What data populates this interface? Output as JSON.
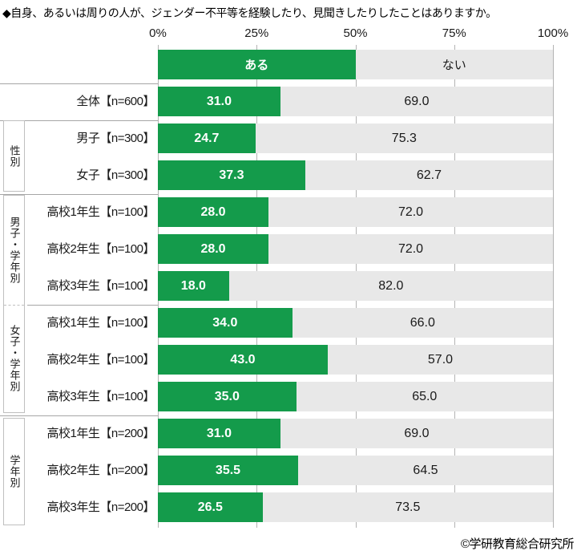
{
  "title": "◆自身、あるいは周りの人が、ジェンダー不平等を経験したり、見聞きしたりしたことはありますか。",
  "footer": "©学研教育総合研究所",
  "colors": {
    "aru_green": "#149b4b",
    "nai_gray": "#e8e8e8",
    "gridline": "#b3b3b3",
    "separator": "#a6a6a6",
    "box_border": "#bfbfbf"
  },
  "chart_data": {
    "type": "bar",
    "orientation": "horizontal-stacked",
    "title": "◆自身、あるいは周りの人が、ジェンダー不平等を経験したり、見聞きしたりしたことはありますか。",
    "xlim": [
      0,
      100
    ],
    "x_tick_labels": [
      "0%",
      "25%",
      "50%",
      "75%",
      "100%"
    ],
    "x_tick_values": [
      0,
      25,
      50,
      75,
      100
    ],
    "legend": [
      "ある",
      "ない"
    ],
    "legend_position": "top-row",
    "grid": true,
    "groups": [
      {
        "label": "",
        "rows": [
          {
            "label": "全体【n=600】",
            "values": [
              31.0,
              69.0
            ]
          }
        ]
      },
      {
        "label": "性別",
        "rows": [
          {
            "label": "男子【n=300】",
            "values": [
              24.7,
              75.3
            ]
          },
          {
            "label": "女子【n=300】",
            "values": [
              37.3,
              62.7
            ]
          }
        ]
      },
      {
        "label": "男子・学年別",
        "rows": [
          {
            "label": "高校1年生【n=100】",
            "values": [
              28.0,
              72.0
            ]
          },
          {
            "label": "高校2年生【n=100】",
            "values": [
              28.0,
              72.0
            ]
          },
          {
            "label": "高校3年生【n=100】",
            "values": [
              18.0,
              82.0
            ]
          }
        ]
      },
      {
        "label": "女子・学年別",
        "rows": [
          {
            "label": "高校1年生【n=100】",
            "values": [
              34.0,
              66.0
            ]
          },
          {
            "label": "高校2年生【n=100】",
            "values": [
              43.0,
              57.0
            ]
          },
          {
            "label": "高校3年生【n=100】",
            "values": [
              35.0,
              65.0
            ]
          }
        ]
      },
      {
        "label": "学年別",
        "rows": [
          {
            "label": "高校1年生【n=200】",
            "values": [
              31.0,
              69.0
            ]
          },
          {
            "label": "高校2年生【n=200】",
            "values": [
              35.5,
              64.5
            ]
          },
          {
            "label": "高校3年生【n=200】",
            "values": [
              26.5,
              73.5
            ]
          }
        ]
      }
    ]
  }
}
